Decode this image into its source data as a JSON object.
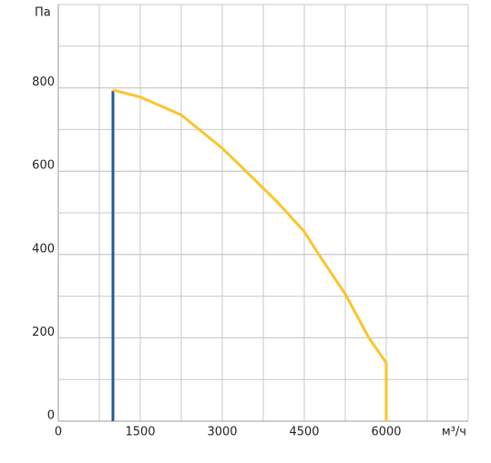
{
  "chart_data": {
    "type": "line",
    "xlabel": "м³/ч",
    "ylabel": "Па",
    "xlim": [
      0,
      7500
    ],
    "ylim": [
      0,
      1000
    ],
    "xticks": [
      0,
      1500,
      3000,
      4500,
      6000
    ],
    "yticks": [
      0,
      200,
      400,
      600,
      800
    ],
    "grid": {
      "x": 750,
      "y": 100
    },
    "series": [
      {
        "color": "#1f5aa0",
        "x": [
          1000,
          1000
        ],
        "values": [
          0,
          793
        ]
      },
      {
        "color": "#fcc42a",
        "x": [
          1000,
          1500,
          2250,
          3000,
          3433,
          4000,
          4500,
          4767,
          5250,
          5683,
          6000,
          6000
        ],
        "values": [
          795,
          778,
          735,
          655,
          600,
          527,
          455,
          400,
          305,
          200,
          140,
          0
        ]
      }
    ]
  }
}
